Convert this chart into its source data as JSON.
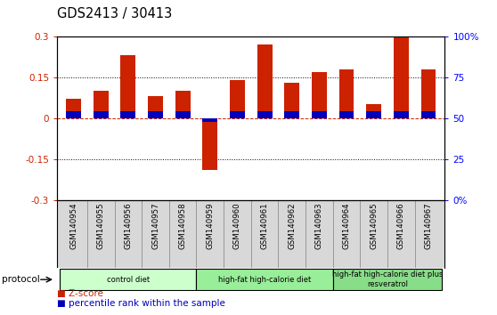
{
  "title": "GDS2413 / 30413",
  "samples": [
    "GSM140954",
    "GSM140955",
    "GSM140956",
    "GSM140957",
    "GSM140958",
    "GSM140959",
    "GSM140960",
    "GSM140961",
    "GSM140962",
    "GSM140963",
    "GSM140964",
    "GSM140965",
    "GSM140966",
    "GSM140967"
  ],
  "z_scores": [
    0.07,
    0.1,
    0.23,
    0.08,
    0.1,
    -0.19,
    0.14,
    0.27,
    0.13,
    0.17,
    0.18,
    0.05,
    0.3,
    0.18
  ],
  "pct_rank_vals": [
    0.025,
    0.025,
    0.025,
    0.025,
    0.025,
    -0.015,
    0.025,
    0.025,
    0.025,
    0.025,
    0.025,
    0.025,
    0.025,
    0.025
  ],
  "bar_color_red": "#cc2200",
  "bar_color_blue": "#0000bb",
  "ylim": [
    -0.3,
    0.3
  ],
  "yticks_left": [
    -0.3,
    -0.15,
    0.0,
    0.15,
    0.3
  ],
  "ytick_labels_left": [
    "-0.3",
    "-0.15",
    "0",
    "0.15",
    "0.3"
  ],
  "ytick_labels_right": [
    "0%",
    "25",
    "50",
    "75",
    "100%"
  ],
  "dotted_lines": [
    -0.15,
    0.15
  ],
  "groups": [
    {
      "label": "control diet",
      "start": 0,
      "end": 4,
      "color": "#ccffcc"
    },
    {
      "label": "high-fat high-calorie diet",
      "start": 5,
      "end": 9,
      "color": "#99ee99"
    },
    {
      "label": "high-fat high-calorie diet plus\nresveratrol",
      "start": 10,
      "end": 13,
      "color": "#88dd88"
    }
  ],
  "protocol_label": "protocol",
  "legend_zscore": "Z-score",
  "legend_pct": "percentile rank within the sample",
  "bar_width": 0.55,
  "axis_bg": "#d8d8d8",
  "plot_bg": "#ffffff"
}
